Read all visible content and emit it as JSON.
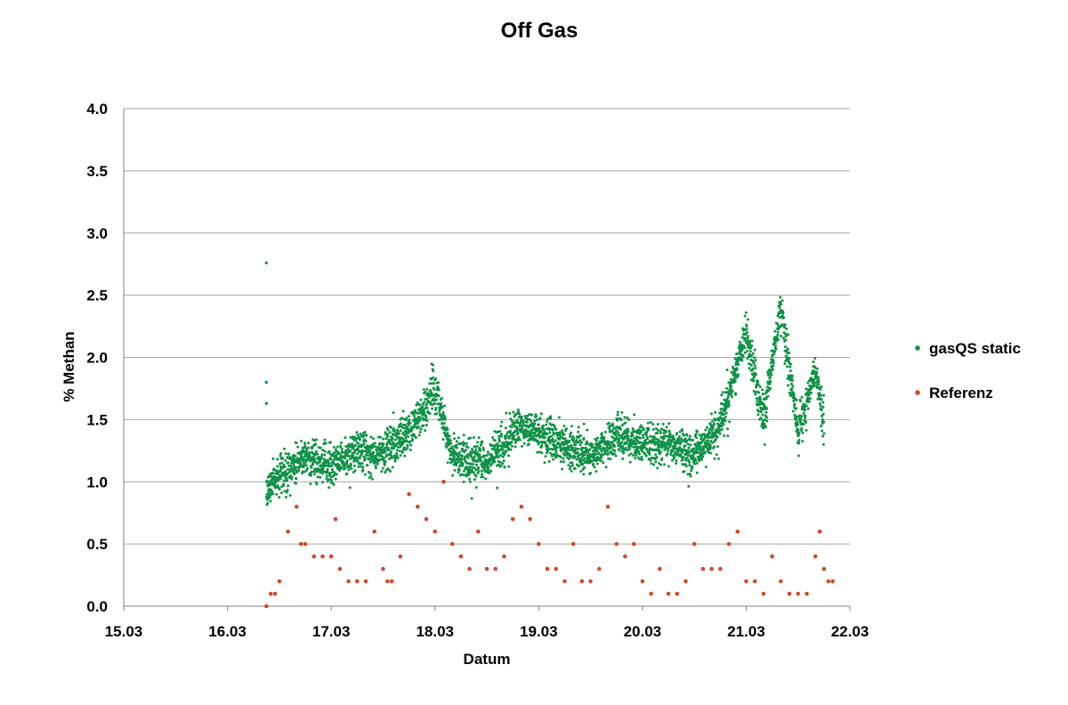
{
  "chart_data": {
    "type": "scatter",
    "title": "Off Gas",
    "xlabel": "Datum",
    "ylabel": "% Methan",
    "x_ticks": [
      "15.03",
      "16.03",
      "17.03",
      "18.03",
      "19.03",
      "20.03",
      "21.03",
      "22.03"
    ],
    "y_ticks": [
      "0.0",
      "0.5",
      "1.0",
      "1.5",
      "2.0",
      "2.5",
      "3.0",
      "3.5",
      "4.0"
    ],
    "xlim": [
      "15.03",
      "22.03"
    ],
    "ylim": [
      0,
      4
    ],
    "grid": "horizontal",
    "legend": "right",
    "colors": {
      "gasqs": "#0f9246",
      "referenz": "#d04a2a",
      "grid": "#a6a6a6",
      "axis": "#808080"
    },
    "series": [
      {
        "name": "gasQS static",
        "key": "gasqs",
        "note_points": [
          [
            "16.03 09:00",
            2.76
          ],
          [
            "16.03 09:00",
            1.8
          ],
          [
            "16.03 09:00",
            1.63
          ]
        ],
        "trend": [
          [
            "16.03 09:00",
            0.95
          ],
          [
            "16.03 12:00",
            1.05
          ],
          [
            "16.03 18:00",
            1.2
          ],
          [
            "17.03 00:00",
            1.12
          ],
          [
            "17.03 06:00",
            1.25
          ],
          [
            "17.03 12:00",
            1.22
          ],
          [
            "17.03 18:00",
            1.4
          ],
          [
            "18.03 00:00",
            1.75
          ],
          [
            "18.03 04:00",
            1.2
          ],
          [
            "18.03 12:00",
            1.15
          ],
          [
            "18.03 20:00",
            1.45
          ],
          [
            "19.03 00:00",
            1.4
          ],
          [
            "19.03 06:00",
            1.28
          ],
          [
            "19.03 12:00",
            1.2
          ],
          [
            "19.03 18:00",
            1.38
          ],
          [
            "20.03 00:00",
            1.3
          ],
          [
            "20.03 06:00",
            1.3
          ],
          [
            "20.03 12:00",
            1.22
          ],
          [
            "20.03 18:00",
            1.45
          ],
          [
            "21.03 00:00",
            2.2
          ],
          [
            "21.03 04:00",
            1.5
          ],
          [
            "21.03 08:00",
            2.4
          ],
          [
            "21.03 12:00",
            1.4
          ],
          [
            "21.03 16:00",
            1.9
          ],
          [
            "21.03 18:00",
            1.45
          ]
        ]
      },
      {
        "name": "Referenz",
        "key": "referenz",
        "points": [
          [
            "16.03 09:00",
            0.0
          ],
          [
            "16.03 10:00",
            0.1
          ],
          [
            "16.03 11:00",
            0.1
          ],
          [
            "16.03 12:00",
            0.2
          ],
          [
            "16.03 14:00",
            0.6
          ],
          [
            "16.03 16:00",
            0.8
          ],
          [
            "16.03 17:00",
            0.5
          ],
          [
            "16.03 18:00",
            0.5
          ],
          [
            "16.03 20:00",
            0.4
          ],
          [
            "16.03 22:00",
            0.4
          ],
          [
            "17.03 00:00",
            0.4
          ],
          [
            "17.03 01:00",
            0.7
          ],
          [
            "17.03 02:00",
            0.3
          ],
          [
            "17.03 04:00",
            0.2
          ],
          [
            "17.03 06:00",
            0.2
          ],
          [
            "17.03 08:00",
            0.2
          ],
          [
            "17.03 10:00",
            0.6
          ],
          [
            "17.03 12:00",
            0.3
          ],
          [
            "17.03 13:00",
            0.2
          ],
          [
            "17.03 14:00",
            0.2
          ],
          [
            "17.03 16:00",
            0.4
          ],
          [
            "17.03 18:00",
            0.9
          ],
          [
            "17.03 20:00",
            0.8
          ],
          [
            "17.03 22:00",
            0.7
          ],
          [
            "18.03 00:00",
            0.6
          ],
          [
            "18.03 02:00",
            1.0
          ],
          [
            "18.03 04:00",
            0.5
          ],
          [
            "18.03 06:00",
            0.4
          ],
          [
            "18.03 08:00",
            0.3
          ],
          [
            "18.03 10:00",
            0.6
          ],
          [
            "18.03 12:00",
            0.3
          ],
          [
            "18.03 14:00",
            0.3
          ],
          [
            "18.03 16:00",
            0.4
          ],
          [
            "18.03 18:00",
            0.7
          ],
          [
            "18.03 20:00",
            0.8
          ],
          [
            "18.03 22:00",
            0.7
          ],
          [
            "19.03 00:00",
            0.5
          ],
          [
            "19.03 02:00",
            0.3
          ],
          [
            "19.03 04:00",
            0.3
          ],
          [
            "19.03 06:00",
            0.2
          ],
          [
            "19.03 08:00",
            0.5
          ],
          [
            "19.03 10:00",
            0.2
          ],
          [
            "19.03 12:00",
            0.2
          ],
          [
            "19.03 14:00",
            0.3
          ],
          [
            "19.03 16:00",
            0.8
          ],
          [
            "19.03 18:00",
            0.5
          ],
          [
            "19.03 20:00",
            0.4
          ],
          [
            "19.03 22:00",
            0.5
          ],
          [
            "20.03 00:00",
            0.2
          ],
          [
            "20.03 02:00",
            0.1
          ],
          [
            "20.03 04:00",
            0.3
          ],
          [
            "20.03 06:00",
            0.1
          ],
          [
            "20.03 08:00",
            0.1
          ],
          [
            "20.03 10:00",
            0.2
          ],
          [
            "20.03 12:00",
            0.5
          ],
          [
            "20.03 14:00",
            0.3
          ],
          [
            "20.03 16:00",
            0.3
          ],
          [
            "20.03 18:00",
            0.3
          ],
          [
            "20.03 20:00",
            0.5
          ],
          [
            "20.03 22:00",
            0.6
          ],
          [
            "21.03 00:00",
            0.2
          ],
          [
            "21.03 02:00",
            0.2
          ],
          [
            "21.03 04:00",
            0.1
          ],
          [
            "21.03 06:00",
            0.4
          ],
          [
            "21.03 08:00",
            0.2
          ],
          [
            "21.03 10:00",
            0.1
          ],
          [
            "21.03 12:00",
            0.1
          ],
          [
            "21.03 14:00",
            0.1
          ],
          [
            "21.03 16:00",
            0.4
          ],
          [
            "21.03 17:00",
            0.6
          ],
          [
            "21.03 18:00",
            0.3
          ],
          [
            "21.03 19:00",
            0.2
          ],
          [
            "21.03 20:00",
            0.2
          ]
        ]
      }
    ]
  }
}
